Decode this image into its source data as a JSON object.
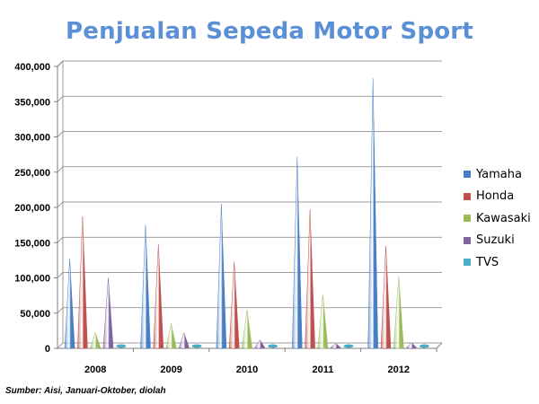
{
  "title": "Penjualan Sepeda Motor Sport",
  "source": "Sumber: Aisi, Januari-Oktober, diolah",
  "chart_data": {
    "type": "bar",
    "bar_shape": "cone",
    "categories": [
      "2008",
      "2009",
      "2010",
      "2011",
      "2012"
    ],
    "series": [
      {
        "name": "Yamaha",
        "color": "#4a7ec4",
        "values": [
          127000,
          175000,
          205000,
          272000,
          383000
        ]
      },
      {
        "name": "Honda",
        "color": "#c0504d",
        "values": [
          187000,
          148000,
          123000,
          197000,
          145000
        ]
      },
      {
        "name": "Kawasaki",
        "color": "#9bbb59",
        "values": [
          22000,
          35000,
          55000,
          76000,
          102000
        ]
      },
      {
        "name": "Suzuki",
        "color": "#8064a2",
        "values": [
          100000,
          22000,
          12000,
          7000,
          8000
        ]
      },
      {
        "name": "TVS",
        "color": "#4bacc6",
        "values": [
          2000,
          2000,
          2000,
          2000,
          2000
        ]
      }
    ],
    "ylim": [
      0,
      400000
    ],
    "yticks": [
      "0",
      "50,000",
      "100,000",
      "150,000",
      "200,000",
      "250,000",
      "300,000",
      "350,000",
      "400,000"
    ],
    "grid": true,
    "legend_position": "right"
  }
}
